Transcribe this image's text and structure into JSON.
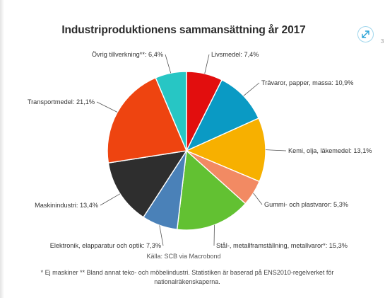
{
  "chart": {
    "title": "Industriproduktionens sammansättning år 2017",
    "source": "Källa: SCB via Macrobond",
    "footnote": "* Ej maskiner ** Bland annat teko- och möbelindustri. Statistiken är baserad på ENS2010-regelverket för nationalräkenskaperna."
  },
  "toolbar": {
    "expand_icon": "expand-arrows-icon",
    "accent_color": "#2aa3d6"
  },
  "edge_text": "3",
  "chart_data": {
    "type": "pie",
    "title": "Industriproduktionens sammansättning år 2017",
    "start_angle_deg": 0,
    "direction": "clockwise",
    "slices": [
      {
        "label": "Livsmedel: 7,4%",
        "name": "Livsmedel",
        "value": 7.4,
        "color": "#e20e0e"
      },
      {
        "label": "Trävaror, papper, massa: 10,9%",
        "name": "Trävaror, papper, massa",
        "value": 10.9,
        "color": "#0a9ac4"
      },
      {
        "label": "Kemi, olja, läkemedel: 13,1%",
        "name": "Kemi, olja, läkemedel",
        "value": 13.1,
        "color": "#f7b000"
      },
      {
        "label": "Gummi- och plastvaror: 5,3%",
        "name": "Gummi- och plastvaror",
        "value": 5.3,
        "color": "#f28a63"
      },
      {
        "label": "Stål-, metallframställning, metallvaror*: 15,3%",
        "name": "Stål-, metallframställning, metallvaror*",
        "value": 15.3,
        "color": "#62c132"
      },
      {
        "label": "Elektronik, elapparatur och optik: 7,3%",
        "name": "Elektronik, elapparatur och optik",
        "value": 7.3,
        "color": "#4a81b8"
      },
      {
        "label": "Maskinindustri: 13,4%",
        "name": "Maskinindustri",
        "value": 13.4,
        "color": "#2e2e2e"
      },
      {
        "label": "Transportmedel: 21,1%",
        "name": "Transportmedel",
        "value": 21.1,
        "color": "#ee4410"
      },
      {
        "label": "Övrig tillverkning**: 6,4%",
        "name": "Övrig tillverkning**",
        "value": 6.4,
        "color": "#27c6c4"
      }
    ]
  }
}
